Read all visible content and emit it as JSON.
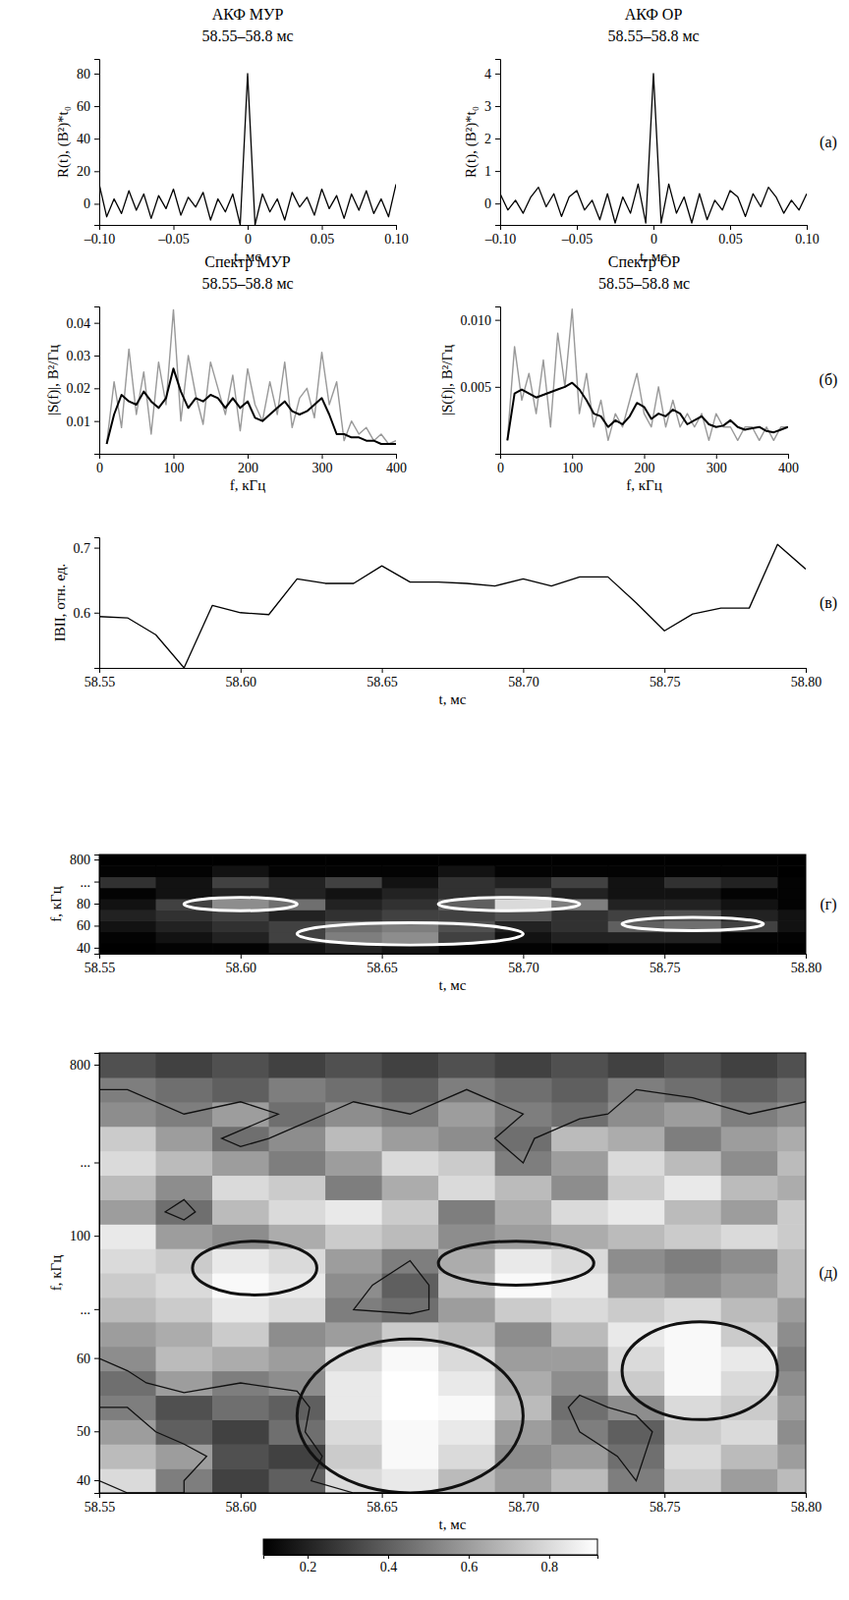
{
  "chart_data": [
    {
      "type": "line",
      "title": "АКФ МУР",
      "subtitle": "58.55–58.8 мс",
      "x_label": "t, мс",
      "y_label": "R(t), (В²)*t₀",
      "x": [
        -0.1,
        -0.095,
        -0.09,
        -0.085,
        -0.08,
        -0.075,
        -0.07,
        -0.065,
        -0.06,
        -0.055,
        -0.05,
        -0.045,
        -0.04,
        -0.035,
        -0.03,
        -0.025,
        -0.02,
        -0.015,
        -0.01,
        -0.005,
        0,
        0.005,
        0.01,
        0.015,
        0.02,
        0.025,
        0.03,
        0.035,
        0.04,
        0.045,
        0.05,
        0.055,
        0.06,
        0.065,
        0.07,
        0.075,
        0.08,
        0.085,
        0.09,
        0.095,
        0.1
      ],
      "values": [
        12,
        -8,
        3,
        -6,
        8,
        -4,
        6,
        -9,
        5,
        -3,
        9,
        -7,
        4,
        -2,
        7,
        -10,
        3,
        -5,
        6,
        -13,
        80,
        -13,
        6,
        -5,
        3,
        -10,
        7,
        -2,
        4,
        -7,
        9,
        -3,
        5,
        -9,
        6,
        -4,
        8,
        -6,
        3,
        -8,
        12
      ],
      "color": "#000000",
      "xlim": [
        -0.1,
        0.1
      ],
      "ylim": [
        -13,
        89
      ],
      "xticks": [
        {
          "value": -0.1,
          "label": "–0.10"
        },
        {
          "value": -0.05,
          "label": "–0.05"
        },
        0,
        0.05,
        {
          "value": 0.1,
          "label": "0.10"
        }
      ],
      "yticks": [
        0,
        20,
        40,
        60,
        80
      ]
    },
    {
      "type": "line",
      "title": "АКФ ОР",
      "subtitle": "58.55–58.8 мс",
      "x_label": "t, мс",
      "y_label": "R(t), (В²)*t₀",
      "panel_label": "(а)",
      "x": [
        -0.1,
        -0.095,
        -0.09,
        -0.085,
        -0.08,
        -0.075,
        -0.07,
        -0.065,
        -0.06,
        -0.055,
        -0.05,
        -0.045,
        -0.04,
        -0.035,
        -0.03,
        -0.025,
        -0.02,
        -0.015,
        -0.01,
        -0.005,
        0,
        0.005,
        0.01,
        0.015,
        0.02,
        0.025,
        0.03,
        0.035,
        0.04,
        0.045,
        0.05,
        0.055,
        0.06,
        0.065,
        0.07,
        0.075,
        0.08,
        0.085,
        0.09,
        0.095,
        0.1
      ],
      "values": [
        0.3,
        -0.2,
        0.1,
        -0.3,
        0.2,
        0.5,
        -0.1,
        0.3,
        -0.4,
        0.2,
        0.4,
        -0.2,
        0.1,
        -0.5,
        0.3,
        -0.6,
        0.2,
        -0.3,
        0.6,
        -0.6,
        4.0,
        -0.6,
        0.6,
        -0.3,
        0.2,
        -0.6,
        0.3,
        -0.5,
        0.1,
        -0.2,
        0.4,
        0.2,
        -0.4,
        0.3,
        -0.1,
        0.5,
        0.2,
        -0.3,
        0.1,
        -0.2,
        0.3
      ],
      "color": "#000000",
      "xlim": [
        -0.1,
        0.1
      ],
      "ylim": [
        -0.66,
        4.45
      ],
      "xticks": [
        {
          "value": -0.1,
          "label": "–0.10"
        },
        {
          "value": -0.05,
          "label": "–0.05"
        },
        0,
        0.05,
        {
          "value": 0.1,
          "label": "0.10"
        }
      ],
      "yticks": [
        0,
        1,
        2,
        3,
        4
      ]
    },
    {
      "type": "line",
      "title": "Спектр МУР",
      "subtitle": "58.55–58.8 мс",
      "x_label": "f, кГц",
      "y_label": "|S(f)|, В²/Гц",
      "x": [
        10,
        20,
        30,
        40,
        50,
        60,
        70,
        80,
        90,
        100,
        110,
        120,
        130,
        140,
        150,
        160,
        170,
        180,
        190,
        200,
        210,
        220,
        230,
        240,
        250,
        260,
        270,
        280,
        290,
        300,
        310,
        320,
        330,
        340,
        350,
        360,
        370,
        380,
        390,
        400
      ],
      "series": [
        {
          "color": "#999999",
          "values": [
            0.003,
            0.022,
            0.008,
            0.032,
            0.012,
            0.025,
            0.006,
            0.028,
            0.015,
            0.044,
            0.01,
            0.03,
            0.018,
            0.009,
            0.028,
            0.02,
            0.012,
            0.024,
            0.007,
            0.026,
            0.015,
            0.01,
            0.022,
            0.012,
            0.028,
            0.008,
            0.017,
            0.02,
            0.011,
            0.031,
            0.015,
            0.022,
            0.004,
            0.01,
            0.006,
            0.008,
            0.004,
            0.006,
            0.003,
            0.004
          ]
        },
        {
          "color": "#000000",
          "values": [
            0.003,
            0.012,
            0.018,
            0.016,
            0.015,
            0.019,
            0.016,
            0.014,
            0.017,
            0.026,
            0.019,
            0.014,
            0.017,
            0.016,
            0.018,
            0.017,
            0.014,
            0.017,
            0.014,
            0.016,
            0.011,
            0.01,
            0.012,
            0.014,
            0.016,
            0.013,
            0.012,
            0.013,
            0.015,
            0.017,
            0.012,
            0.006,
            0.006,
            0.005,
            0.005,
            0.004,
            0.004,
            0.003,
            0.003,
            0.003
          ]
        }
      ],
      "xlim": [
        0,
        400
      ],
      "ylim": [
        0,
        0.045
      ],
      "xticks": [
        0,
        100,
        200,
        300,
        400
      ],
      "yticks": [
        0.01,
        0.02,
        0.03,
        0.04
      ]
    },
    {
      "type": "line",
      "title": "Спектр ОР",
      "subtitle": "58.55–58.8 мс",
      "x_label": "f, кГц",
      "y_label": "|S(f)|, В²/Гц",
      "panel_label": "(б)",
      "x": [
        10,
        20,
        30,
        40,
        50,
        60,
        70,
        80,
        90,
        100,
        110,
        120,
        130,
        140,
        150,
        160,
        170,
        180,
        190,
        200,
        210,
        220,
        230,
        240,
        250,
        260,
        270,
        280,
        290,
        300,
        310,
        320,
        330,
        340,
        350,
        360,
        370,
        380,
        390,
        400
      ],
      "series": [
        {
          "color": "#999999",
          "values": [
            0.001,
            0.008,
            0.004,
            0.006,
            0.003,
            0.007,
            0.002,
            0.009,
            0.005,
            0.0108,
            0.003,
            0.006,
            0.002,
            0.004,
            0.001,
            0.003,
            0.002,
            0.004,
            0.006,
            0.003,
            0.002,
            0.005,
            0.002,
            0.004,
            0.002,
            0.003,
            0.002,
            0.003,
            0.001,
            0.003,
            0.002,
            0.002,
            0.001,
            0.002,
            0.002,
            0.001,
            0.002,
            0.001,
            0.002,
            0.002
          ]
        },
        {
          "color": "#000000",
          "values": [
            0.001,
            0.0045,
            0.0048,
            0.0045,
            0.0042,
            0.0044,
            0.0046,
            0.0048,
            0.005,
            0.0053,
            0.0048,
            0.004,
            0.003,
            0.0028,
            0.002,
            0.0025,
            0.0022,
            0.0028,
            0.0038,
            0.0035,
            0.0026,
            0.003,
            0.0028,
            0.0033,
            0.003,
            0.0022,
            0.0025,
            0.0028,
            0.0022,
            0.002,
            0.0021,
            0.0025,
            0.002,
            0.0018,
            0.0019,
            0.002,
            0.0017,
            0.0016,
            0.0018,
            0.002
          ]
        }
      ],
      "xlim": [
        0,
        400
      ],
      "ylim": [
        0,
        0.011
      ],
      "xticks": [
        0,
        100,
        200,
        300,
        400
      ],
      "yticks": [
        0.005,
        {
          "value": 0.01,
          "label": "0.010"
        }
      ]
    },
    {
      "type": "line",
      "x_label": "t, мс",
      "y_label": "IBII, отн. ед.",
      "panel_label": "(в)",
      "x": [
        58.55,
        58.56,
        58.57,
        58.58,
        58.59,
        58.6,
        58.61,
        58.62,
        58.63,
        58.64,
        58.65,
        58.66,
        58.67,
        58.68,
        58.69,
        58.7,
        58.71,
        58.72,
        58.73,
        58.74,
        58.75,
        58.76,
        58.77,
        58.78,
        58.79,
        58.8
      ],
      "values": [
        0.594,
        0.592,
        0.566,
        0.515,
        0.611,
        0.6,
        0.597,
        0.652,
        0.645,
        0.645,
        0.672,
        0.647,
        0.647,
        0.645,
        0.641,
        0.652,
        0.641,
        0.655,
        0.655,
        0.615,
        0.572,
        0.598,
        0.607,
        0.607,
        0.705,
        0.667
      ],
      "color": "#000000",
      "xlim": [
        58.55,
        58.8
      ],
      "ylim": [
        0.515,
        0.716
      ],
      "xticks": [
        58.55,
        {
          "value": 58.6,
          "label": "58.60"
        },
        58.65,
        {
          "value": 58.7,
          "label": "58.70"
        },
        58.75,
        {
          "value": 58.8,
          "label": "58.80"
        }
      ],
      "yticks": [
        0.6,
        0.7
      ]
    },
    {
      "type": "heatmap",
      "x_label": "t, мс",
      "y_label": "f, кГц",
      "panel_label": "(г)",
      "x": [
        58.56,
        58.58,
        58.6,
        58.62,
        58.64,
        58.66,
        58.68,
        58.7,
        58.72,
        58.74,
        58.76,
        58.78,
        58.8
      ],
      "rows": [
        "40",
        null,
        "60",
        null,
        "80",
        null,
        "...",
        null,
        "800"
      ],
      "z": [
        [
          0.05,
          0.1,
          0.1,
          0.15,
          0.2,
          0.15,
          0.1,
          0.1,
          0.05,
          0.1,
          0.1,
          0.05,
          0.05
        ],
        [
          0.1,
          0.15,
          0.2,
          0.3,
          0.5,
          0.55,
          0.3,
          0.15,
          0.2,
          0.2,
          0.2,
          0.1,
          0.1
        ],
        [
          0.15,
          0.2,
          0.25,
          0.3,
          0.45,
          0.5,
          0.35,
          0.2,
          0.25,
          0.4,
          0.45,
          0.3,
          0.15
        ],
        [
          0.2,
          0.25,
          0.3,
          0.2,
          0.25,
          0.3,
          0.3,
          0.35,
          0.25,
          0.3,
          0.35,
          0.2,
          0.15
        ],
        [
          0.15,
          0.3,
          0.55,
          0.45,
          0.2,
          0.25,
          0.4,
          0.8,
          0.5,
          0.2,
          0.2,
          0.15,
          0.1
        ],
        [
          0.1,
          0.15,
          0.2,
          0.2,
          0.15,
          0.2,
          0.25,
          0.3,
          0.2,
          0.15,
          0.15,
          0.1,
          0.1
        ],
        [
          0.25,
          0.15,
          0.3,
          0.2,
          0.3,
          0.15,
          0.25,
          0.2,
          0.3,
          0.15,
          0.25,
          0.2,
          0.1
        ],
        [
          0.1,
          0.1,
          0.15,
          0.1,
          0.1,
          0.1,
          0.15,
          0.1,
          0.1,
          0.1,
          0.1,
          0.1,
          0.05
        ],
        [
          0.05,
          0.05,
          0.05,
          0.05,
          0.05,
          0.05,
          0.05,
          0.05,
          0.05,
          0.05,
          0.05,
          0.05,
          0.05
        ]
      ],
      "regions": [
        {
          "x0": 58.58,
          "x1": 58.62,
          "y0": 3.4,
          "y1": 4.6
        },
        {
          "x0": 58.62,
          "x1": 58.7,
          "y0": 0.3,
          "y1": 2.3
        },
        {
          "x0": 58.67,
          "x1": 58.72,
          "y0": 3.4,
          "y1": 4.6
        },
        {
          "x0": 58.735,
          "x1": 58.785,
          "y0": 1.6,
          "y1": 2.8
        }
      ],
      "xlim": [
        58.55,
        58.8
      ],
      "xticks": [
        58.55,
        {
          "value": 58.6,
          "label": "58.60"
        },
        58.65,
        {
          "value": 58.7,
          "label": "58.70"
        },
        58.75,
        {
          "value": 58.8,
          "label": "58.80"
        }
      ]
    },
    {
      "type": "heatmap",
      "x_label": "t, мс",
      "y_label": "f, кГц",
      "panel_label": "(д)",
      "x": [
        58.56,
        58.58,
        58.6,
        58.62,
        58.64,
        58.66,
        58.68,
        58.7,
        58.72,
        58.74,
        58.76,
        58.78,
        58.8
      ],
      "rows": [
        "40",
        null,
        "50",
        null,
        null,
        "60",
        null,
        "...",
        null,
        null,
        "100",
        null,
        null,
        "...",
        null,
        null,
        null,
        "800"
      ],
      "z": [
        [
          0.8,
          0.5,
          0.3,
          0.4,
          0.8,
          0.85,
          0.7,
          0.6,
          0.7,
          0.5,
          0.75,
          0.6,
          0.7
        ],
        [
          0.7,
          0.6,
          0.35,
          0.3,
          0.75,
          0.9,
          0.8,
          0.55,
          0.6,
          0.45,
          0.8,
          0.7,
          0.6
        ],
        [
          0.6,
          0.4,
          0.3,
          0.45,
          0.8,
          0.9,
          0.85,
          0.6,
          0.5,
          0.4,
          0.75,
          0.8,
          0.55
        ],
        [
          0.5,
          0.35,
          0.45,
          0.4,
          0.85,
          0.95,
          0.9,
          0.7,
          0.45,
          0.55,
          0.8,
          0.75,
          0.6
        ],
        [
          0.45,
          0.6,
          0.5,
          0.55,
          0.85,
          0.95,
          0.85,
          0.65,
          0.55,
          0.75,
          0.9,
          0.8,
          0.55
        ],
        [
          0.55,
          0.7,
          0.65,
          0.6,
          0.8,
          0.9,
          0.8,
          0.6,
          0.6,
          0.8,
          0.9,
          0.85,
          0.5
        ],
        [
          0.6,
          0.65,
          0.75,
          0.55,
          0.6,
          0.75,
          0.7,
          0.55,
          0.7,
          0.85,
          0.9,
          0.75,
          0.55
        ],
        [
          0.7,
          0.75,
          0.85,
          0.8,
          0.5,
          0.45,
          0.6,
          0.75,
          0.8,
          0.75,
          0.8,
          0.7,
          0.6
        ],
        [
          0.75,
          0.8,
          0.9,
          0.85,
          0.55,
          0.4,
          0.7,
          0.9,
          0.85,
          0.6,
          0.55,
          0.6,
          0.7
        ],
        [
          0.8,
          0.75,
          0.85,
          0.8,
          0.6,
          0.5,
          0.65,
          0.85,
          0.8,
          0.55,
          0.5,
          0.55,
          0.7
        ],
        [
          0.85,
          0.6,
          0.55,
          0.65,
          0.75,
          0.7,
          0.55,
          0.6,
          0.65,
          0.7,
          0.75,
          0.8,
          0.75
        ],
        [
          0.6,
          0.45,
          0.7,
          0.8,
          0.85,
          0.75,
          0.5,
          0.65,
          0.8,
          0.85,
          0.7,
          0.6,
          0.75
        ],
        [
          0.7,
          0.55,
          0.8,
          0.75,
          0.5,
          0.65,
          0.8,
          0.7,
          0.55,
          0.75,
          0.85,
          0.7,
          0.65
        ],
        [
          0.8,
          0.7,
          0.6,
          0.5,
          0.6,
          0.8,
          0.75,
          0.5,
          0.6,
          0.8,
          0.7,
          0.55,
          0.7
        ],
        [
          0.75,
          0.6,
          0.45,
          0.55,
          0.7,
          0.6,
          0.55,
          0.45,
          0.7,
          0.65,
          0.5,
          0.6,
          0.65
        ],
        [
          0.55,
          0.5,
          0.6,
          0.45,
          0.55,
          0.5,
          0.6,
          0.5,
          0.45,
          0.55,
          0.6,
          0.5,
          0.55
        ],
        [
          0.5,
          0.45,
          0.4,
          0.5,
          0.45,
          0.4,
          0.5,
          0.45,
          0.4,
          0.5,
          0.45,
          0.4,
          0.45
        ],
        [
          0.35,
          0.3,
          0.35,
          0.3,
          0.35,
          0.3,
          0.35,
          0.3,
          0.35,
          0.3,
          0.35,
          0.3,
          0.35
        ]
      ],
      "contours": [
        0.5
      ],
      "regions": [
        {
          "x0": 58.583,
          "x1": 58.627,
          "y0": 7.6,
          "y1": 9.8
        },
        {
          "x0": 58.62,
          "x1": 58.7,
          "y0": -0.5,
          "y1": 5.8
        },
        {
          "x0": 58.67,
          "x1": 58.725,
          "y0": 8.0,
          "y1": 9.8
        },
        {
          "x0": 58.735,
          "x1": 58.79,
          "y0": 2.5,
          "y1": 6.5
        }
      ],
      "colorbar": {
        "lim": [
          0.09,
          0.92
        ],
        "ticks": [
          0.2,
          0.4,
          0.6,
          0.8
        ]
      },
      "xlim": [
        58.55,
        58.8
      ],
      "xticks": [
        58.55,
        {
          "value": 58.6,
          "label": "58.60"
        },
        58.65,
        {
          "value": 58.7,
          "label": "58.70"
        },
        58.75,
        {
          "value": 58.8,
          "label": "58.80"
        }
      ]
    }
  ]
}
